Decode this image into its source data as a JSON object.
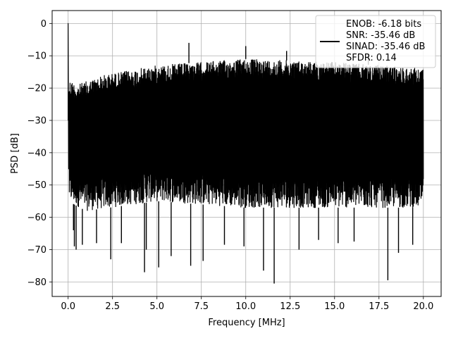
{
  "chart_data": {
    "type": "line",
    "title": "",
    "xlabel": "Frequency [MHz]",
    "ylabel": "PSD [dB]",
    "xlim": [
      -0.9,
      21.0
    ],
    "ylim": [
      -84.5,
      4.0
    ],
    "x_ticks": [
      0.0,
      2.5,
      5.0,
      7.5,
      10.0,
      12.5,
      15.0,
      17.5,
      20.0
    ],
    "x_tick_labels": [
      "0.0",
      "2.5",
      "5.0",
      "7.5",
      "10.0",
      "12.5",
      "15.0",
      "17.5",
      "20.0"
    ],
    "y_ticks": [
      0,
      -10,
      -20,
      -30,
      -40,
      -50,
      -60,
      -70,
      -80
    ],
    "y_tick_labels": [
      "0",
      "−10",
      "−20",
      "−30",
      "−40",
      "−50",
      "−60",
      "−70",
      "−80"
    ],
    "grid": true,
    "legend_position": "top-right",
    "series": [
      {
        "name": "ENOB: -6.18 bits\nSNR: -35.46 dB\nSINAD: -35.46 dB\nSFDR: 0.14",
        "color": "#000000",
        "x_range": [
          0.0,
          20.0
        ],
        "peak": {
          "x": 0.0,
          "y": 0.0
        },
        "spurs": [
          {
            "x": 6.8,
            "y": -6.0
          },
          {
            "x": 10.0,
            "y": -7.0
          },
          {
            "x": 12.3,
            "y": -8.5
          },
          {
            "x": 16.9,
            "y": -9.5
          }
        ],
        "upper_envelope": [
          {
            "x": 0.0,
            "y": -17
          },
          {
            "x": 0.5,
            "y": -19
          },
          {
            "x": 2.0,
            "y": -16
          },
          {
            "x": 5.0,
            "y": -13
          },
          {
            "x": 10.0,
            "y": -11
          },
          {
            "x": 15.0,
            "y": -12
          },
          {
            "x": 20.0,
            "y": -14
          }
        ],
        "lower_envelope": [
          {
            "x": 0.0,
            "y": -55
          },
          {
            "x": 1.0,
            "y": -58
          },
          {
            "x": 5.0,
            "y": -55
          },
          {
            "x": 10.0,
            "y": -57
          },
          {
            "x": 15.0,
            "y": -57
          },
          {
            "x": 20.0,
            "y": -57
          }
        ],
        "deep_nulls": [
          {
            "x": 0.3,
            "y": -64
          },
          {
            "x": 0.35,
            "y": -69
          },
          {
            "x": 0.45,
            "y": -70
          },
          {
            "x": 0.8,
            "y": -68.5
          },
          {
            "x": 1.6,
            "y": -68
          },
          {
            "x": 2.4,
            "y": -73
          },
          {
            "x": 3.0,
            "y": -68
          },
          {
            "x": 4.3,
            "y": -77
          },
          {
            "x": 4.4,
            "y": -70
          },
          {
            "x": 5.1,
            "y": -75.5
          },
          {
            "x": 5.8,
            "y": -72
          },
          {
            "x": 6.9,
            "y": -75
          },
          {
            "x": 7.6,
            "y": -73.5
          },
          {
            "x": 8.8,
            "y": -68.5
          },
          {
            "x": 9.9,
            "y": -69
          },
          {
            "x": 11.0,
            "y": -76.5
          },
          {
            "x": 11.6,
            "y": -80.5
          },
          {
            "x": 13.0,
            "y": -70
          },
          {
            "x": 14.1,
            "y": -67
          },
          {
            "x": 15.2,
            "y": -68
          },
          {
            "x": 16.1,
            "y": -67.5
          },
          {
            "x": 18.0,
            "y": -79.5
          },
          {
            "x": 18.6,
            "y": -71
          },
          {
            "x": 19.4,
            "y": -68.5
          }
        ]
      }
    ]
  }
}
